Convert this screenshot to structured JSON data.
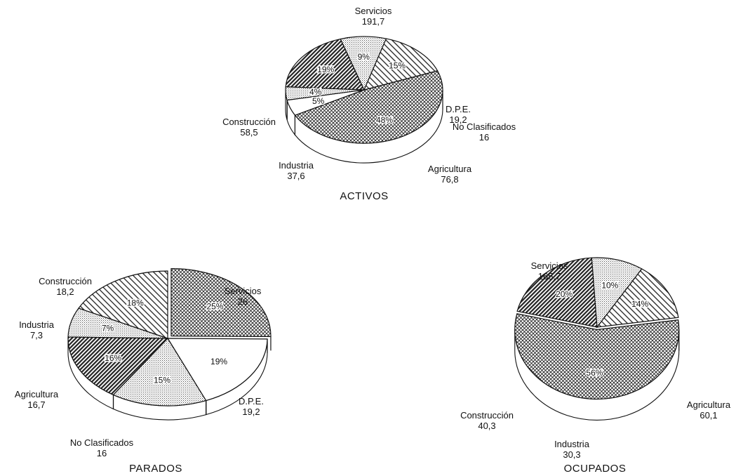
{
  "chart_data": [
    {
      "type": "pie",
      "title": "ACTIVOS",
      "slices": [
        {
          "key": "servicios",
          "label": "Servicios",
          "value": "191,7",
          "pct": "48%",
          "fill": "cross"
        },
        {
          "key": "dpe",
          "label": "D.P.E.",
          "value": "19,2",
          "pct": "5%",
          "fill": "white"
        },
        {
          "key": "noclas",
          "label": "No Clasificados",
          "value": "16",
          "pct": "4%",
          "fill": "dots"
        },
        {
          "key": "agricultura",
          "label": "Agricultura",
          "value": "76,8",
          "pct": "19%",
          "fill": "dense"
        },
        {
          "key": "industria",
          "label": "Industria",
          "value": "37,6",
          "pct": "9%",
          "fill": "dots"
        },
        {
          "key": "construccion",
          "label": "Construcción",
          "value": "58,5",
          "pct": "15%",
          "fill": "hatch"
        }
      ]
    },
    {
      "type": "pie",
      "title": "PARADOS",
      "slices": [
        {
          "key": "servicios",
          "label": "Servicios",
          "value": "26",
          "pct": "25%",
          "fill": "cross"
        },
        {
          "key": "dpe",
          "label": "D.P.E.",
          "value": "19,2",
          "pct": "19%",
          "fill": "white"
        },
        {
          "key": "noclas",
          "label": "No Clasificados",
          "value": "16",
          "pct": "15%",
          "fill": "dots"
        },
        {
          "key": "agricultura",
          "label": "Agricultura",
          "value": "16,7",
          "pct": "16%",
          "fill": "dense"
        },
        {
          "key": "industria",
          "label": "Industria",
          "value": "7,3",
          "pct": "7%",
          "fill": "dots"
        },
        {
          "key": "construccion",
          "label": "Construcción",
          "value": "18,2",
          "pct": "18%",
          "fill": "hatch"
        }
      ]
    },
    {
      "type": "pie",
      "title": "OCUPADOS",
      "slices": [
        {
          "key": "servicios",
          "label": "Servicios",
          "value": "165,7",
          "pct": "56%",
          "fill": "cross"
        },
        {
          "key": "agricultura",
          "label": "Agricultura",
          "value": "60,1",
          "pct": "20%",
          "fill": "dense"
        },
        {
          "key": "industria",
          "label": "Industria",
          "value": "30,3",
          "pct": "10%",
          "fill": "dots"
        },
        {
          "key": "construccion",
          "label": "Construcción",
          "value": "40,3",
          "pct": "14%",
          "fill": "hatch"
        }
      ]
    }
  ]
}
